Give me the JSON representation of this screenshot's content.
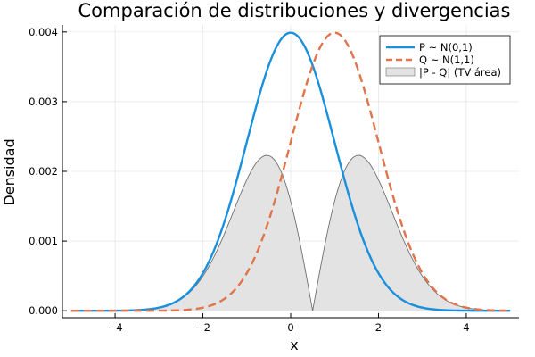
{
  "chart_data": {
    "type": "line",
    "title": "Comparación de distribuciones y divergencias",
    "xlabel": "x",
    "ylabel": "Densidad",
    "xlim": [
      -5.2,
      5.2
    ],
    "ylim": [
      -0.0001,
      0.0041
    ],
    "xticks": [
      -4,
      -2,
      0,
      2,
      4
    ],
    "xtick_labels": [
      "−4",
      "−2",
      "0",
      "2",
      "4"
    ],
    "yticks": [
      0.0,
      0.001,
      0.002,
      0.003,
      0.004
    ],
    "ytick_labels": [
      "0.000",
      "0.001",
      "0.002",
      "0.003",
      "0.004"
    ],
    "grid": true,
    "legend_position": "top-right",
    "x_range": [
      -5,
      5
    ],
    "density_scale": 0.01,
    "series": [
      {
        "name": "P ~ N(0,1)",
        "mean": 0,
        "sd": 1,
        "style": "solid",
        "color": "#1a90dd"
      },
      {
        "name": "Q ~ N(1,1)",
        "mean": 1,
        "sd": 1,
        "style": "dashed",
        "color": "#e0744a"
      }
    ],
    "fill_series": {
      "name": "|P - Q| (TV área)",
      "definition": "abs(P - Q)",
      "fill": "#e3e3e3",
      "stroke": "#6e6e6e"
    }
  }
}
